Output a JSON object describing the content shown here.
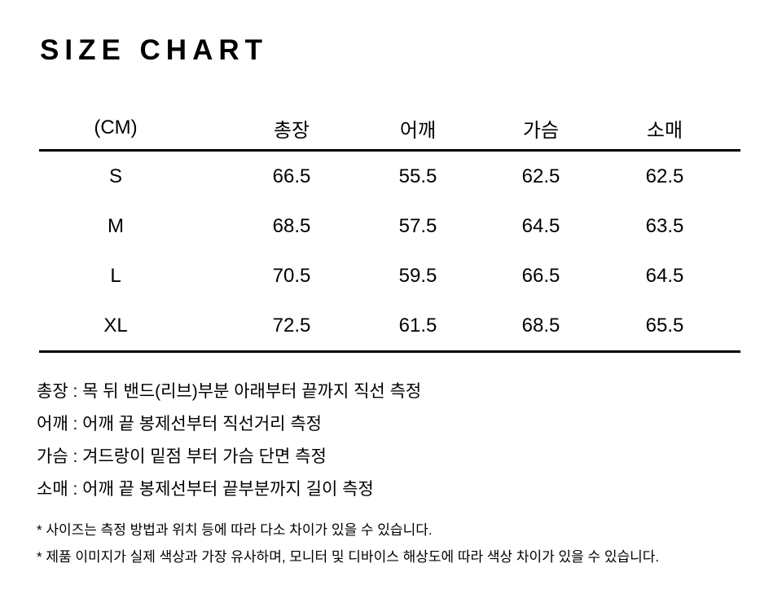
{
  "title": "SIZE CHART",
  "table": {
    "unit_label": "(CM)",
    "columns": [
      "총장",
      "어깨",
      "가슴",
      "소매"
    ],
    "rows": [
      {
        "size": "S",
        "values": [
          "66.5",
          "55.5",
          "62.5",
          "62.5"
        ]
      },
      {
        "size": "M",
        "values": [
          "68.5",
          "57.5",
          "64.5",
          "63.5"
        ]
      },
      {
        "size": "L",
        "values": [
          "70.5",
          "59.5",
          "66.5",
          "64.5"
        ]
      },
      {
        "size": "XL",
        "values": [
          "72.5",
          "61.5",
          "68.5",
          "65.5"
        ]
      }
    ]
  },
  "measurement_notes": [
    "총장 : 목 뒤 밴드(리브)부분 아래부터 끝까지 직선 측정",
    "어깨 : 어깨 끝 봉제선부터 직선거리 측정",
    "가슴 : 겨드랑이 밑점 부터 가슴 단면 측정",
    "소매 : 어깨 끝 봉제선부터 끝부분까지 길이 측정"
  ],
  "disclaimers": [
    "* 사이즈는 측정 방법과 위치 등에 따라 다소 차이가 있을 수 있습니다.",
    "* 제품 이미지가 실제 색상과 가장 유사하며, 모니터 및 디바이스 해상도에 따라 색상 차이가 있을 수 있습니다."
  ],
  "colors": {
    "background": "#ffffff",
    "text": "#000000",
    "rule": "#000000"
  }
}
